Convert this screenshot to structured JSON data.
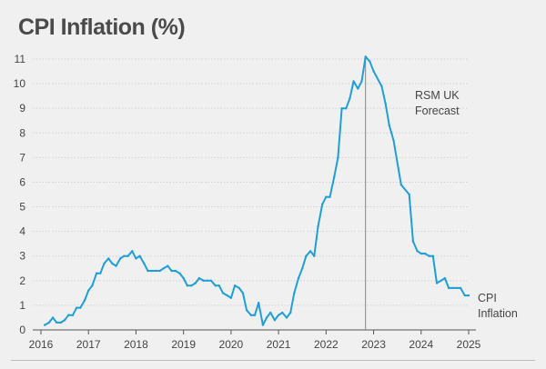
{
  "title": "CPI Inflation (%)",
  "chart_data": {
    "type": "line",
    "title": "CPI Inflation (%)",
    "xlabel": "",
    "ylabel": "",
    "xlim": [
      2016.0,
      2025.0
    ],
    "ylim": [
      0,
      11
    ],
    "x_ticks": [
      2016,
      2017,
      2018,
      2019,
      2020,
      2021,
      2022,
      2023,
      2024,
      2025
    ],
    "y_ticks": [
      0,
      1,
      2,
      3,
      4,
      5,
      6,
      7,
      8,
      9,
      10,
      11
    ],
    "grid": true,
    "colors": {
      "line": "#1f9ed8",
      "grid": "#d2d2d2",
      "axis": "#555555",
      "text": "#444444",
      "marker": "#888888"
    },
    "vertical_marker": {
      "x": 2022.83,
      "label_lines": [
        "RSM UK",
        "Forecast"
      ]
    },
    "series": [
      {
        "name": "CPI Inflation",
        "name_lines": [
          "CPI",
          "Inflation"
        ],
        "points": [
          [
            2016.08,
            0.2
          ],
          [
            2016.17,
            0.3
          ],
          [
            2016.25,
            0.5
          ],
          [
            2016.33,
            0.3
          ],
          [
            2016.42,
            0.3
          ],
          [
            2016.5,
            0.4
          ],
          [
            2016.58,
            0.6
          ],
          [
            2016.67,
            0.6
          ],
          [
            2016.75,
            0.9
          ],
          [
            2016.83,
            0.9
          ],
          [
            2016.92,
            1.2
          ],
          [
            2017.0,
            1.6
          ],
          [
            2017.08,
            1.8
          ],
          [
            2017.17,
            2.3
          ],
          [
            2017.25,
            2.3
          ],
          [
            2017.33,
            2.7
          ],
          [
            2017.42,
            2.9
          ],
          [
            2017.5,
            2.7
          ],
          [
            2017.58,
            2.6
          ],
          [
            2017.67,
            2.9
          ],
          [
            2017.75,
            3.0
          ],
          [
            2017.83,
            3.0
          ],
          [
            2017.92,
            3.2
          ],
          [
            2018.0,
            2.9
          ],
          [
            2018.08,
            3.0
          ],
          [
            2018.17,
            2.7
          ],
          [
            2018.25,
            2.4
          ],
          [
            2018.33,
            2.4
          ],
          [
            2018.42,
            2.4
          ],
          [
            2018.5,
            2.4
          ],
          [
            2018.58,
            2.5
          ],
          [
            2018.67,
            2.6
          ],
          [
            2018.75,
            2.4
          ],
          [
            2018.83,
            2.4
          ],
          [
            2018.92,
            2.3
          ],
          [
            2019.0,
            2.1
          ],
          [
            2019.08,
            1.8
          ],
          [
            2019.17,
            1.8
          ],
          [
            2019.25,
            1.9
          ],
          [
            2019.33,
            2.1
          ],
          [
            2019.42,
            2.0
          ],
          [
            2019.5,
            2.0
          ],
          [
            2019.58,
            2.0
          ],
          [
            2019.67,
            1.8
          ],
          [
            2019.75,
            1.8
          ],
          [
            2019.83,
            1.5
          ],
          [
            2019.92,
            1.4
          ],
          [
            2020.0,
            1.3
          ],
          [
            2020.08,
            1.8
          ],
          [
            2020.17,
            1.7
          ],
          [
            2020.25,
            1.5
          ],
          [
            2020.33,
            0.8
          ],
          [
            2020.42,
            0.6
          ],
          [
            2020.5,
            0.6
          ],
          [
            2020.58,
            1.1
          ],
          [
            2020.67,
            0.2
          ],
          [
            2020.75,
            0.5
          ],
          [
            2020.83,
            0.7
          ],
          [
            2020.92,
            0.4
          ],
          [
            2021.0,
            0.6
          ],
          [
            2021.08,
            0.7
          ],
          [
            2021.17,
            0.5
          ],
          [
            2021.25,
            0.7
          ],
          [
            2021.33,
            1.5
          ],
          [
            2021.42,
            2.1
          ],
          [
            2021.5,
            2.5
          ],
          [
            2021.58,
            3.0
          ],
          [
            2021.67,
            3.2
          ],
          [
            2021.75,
            3.0
          ],
          [
            2021.83,
            4.2
          ],
          [
            2021.92,
            5.1
          ],
          [
            2022.0,
            5.4
          ],
          [
            2022.08,
            5.4
          ],
          [
            2022.17,
            6.2
          ],
          [
            2022.25,
            7.0
          ],
          [
            2022.33,
            9.0
          ],
          [
            2022.42,
            9.0
          ],
          [
            2022.5,
            9.4
          ],
          [
            2022.58,
            10.1
          ],
          [
            2022.67,
            9.8
          ],
          [
            2022.75,
            10.1
          ],
          [
            2022.83,
            11.1
          ],
          [
            2022.92,
            10.9
          ],
          [
            2023.0,
            10.5
          ],
          [
            2023.17,
            9.9
          ],
          [
            2023.25,
            9.2
          ],
          [
            2023.33,
            8.3
          ],
          [
            2023.42,
            7.7
          ],
          [
            2023.58,
            5.9
          ],
          [
            2023.75,
            5.5
          ],
          [
            2023.83,
            3.6
          ],
          [
            2023.92,
            3.2
          ],
          [
            2024.0,
            3.1
          ],
          [
            2024.08,
            3.1
          ],
          [
            2024.17,
            3.0
          ],
          [
            2024.25,
            3.0
          ],
          [
            2024.33,
            1.9
          ],
          [
            2024.42,
            2.0
          ],
          [
            2024.5,
            2.1
          ],
          [
            2024.58,
            1.7
          ],
          [
            2024.67,
            1.7
          ],
          [
            2024.75,
            1.7
          ],
          [
            2024.83,
            1.7
          ],
          [
            2024.92,
            1.4
          ],
          [
            2025.0,
            1.4
          ]
        ]
      }
    ]
  }
}
